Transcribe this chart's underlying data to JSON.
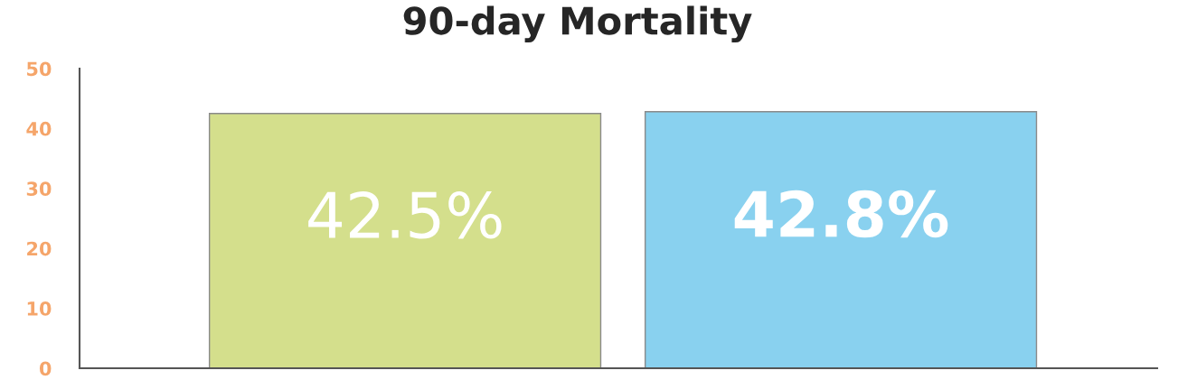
{
  "chart_data": {
    "type": "bar",
    "title": "90-day Mortality",
    "categories": [
      null,
      null
    ],
    "values": [
      42.5,
      42.8
    ],
    "colors": [
      "#d4df8c",
      "#89d1ef"
    ],
    "value_labels": [
      "42.5%",
      "42.8%"
    ],
    "ylim": [
      0,
      50
    ],
    "yticks": [
      0,
      10,
      20,
      30,
      40,
      50
    ],
    "grid": false,
    "legend": false
  }
}
